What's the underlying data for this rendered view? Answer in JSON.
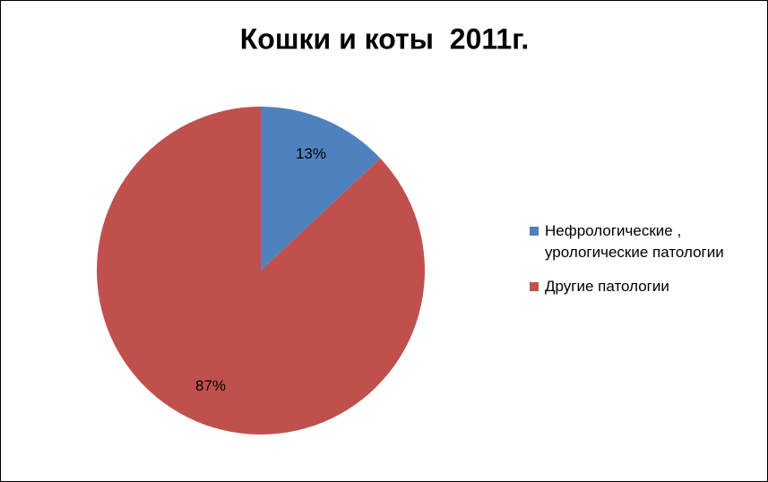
{
  "chart_data": {
    "type": "pie",
    "title": "Кошки и коты  2011г.",
    "categories": [
      "Нефрологические , урологические патологии",
      "Другие патологии"
    ],
    "values": [
      13,
      87
    ],
    "value_labels": [
      "13%",
      "87%"
    ],
    "colors": [
      "#4f81bd",
      "#c0504d"
    ],
    "legend": "right"
  }
}
